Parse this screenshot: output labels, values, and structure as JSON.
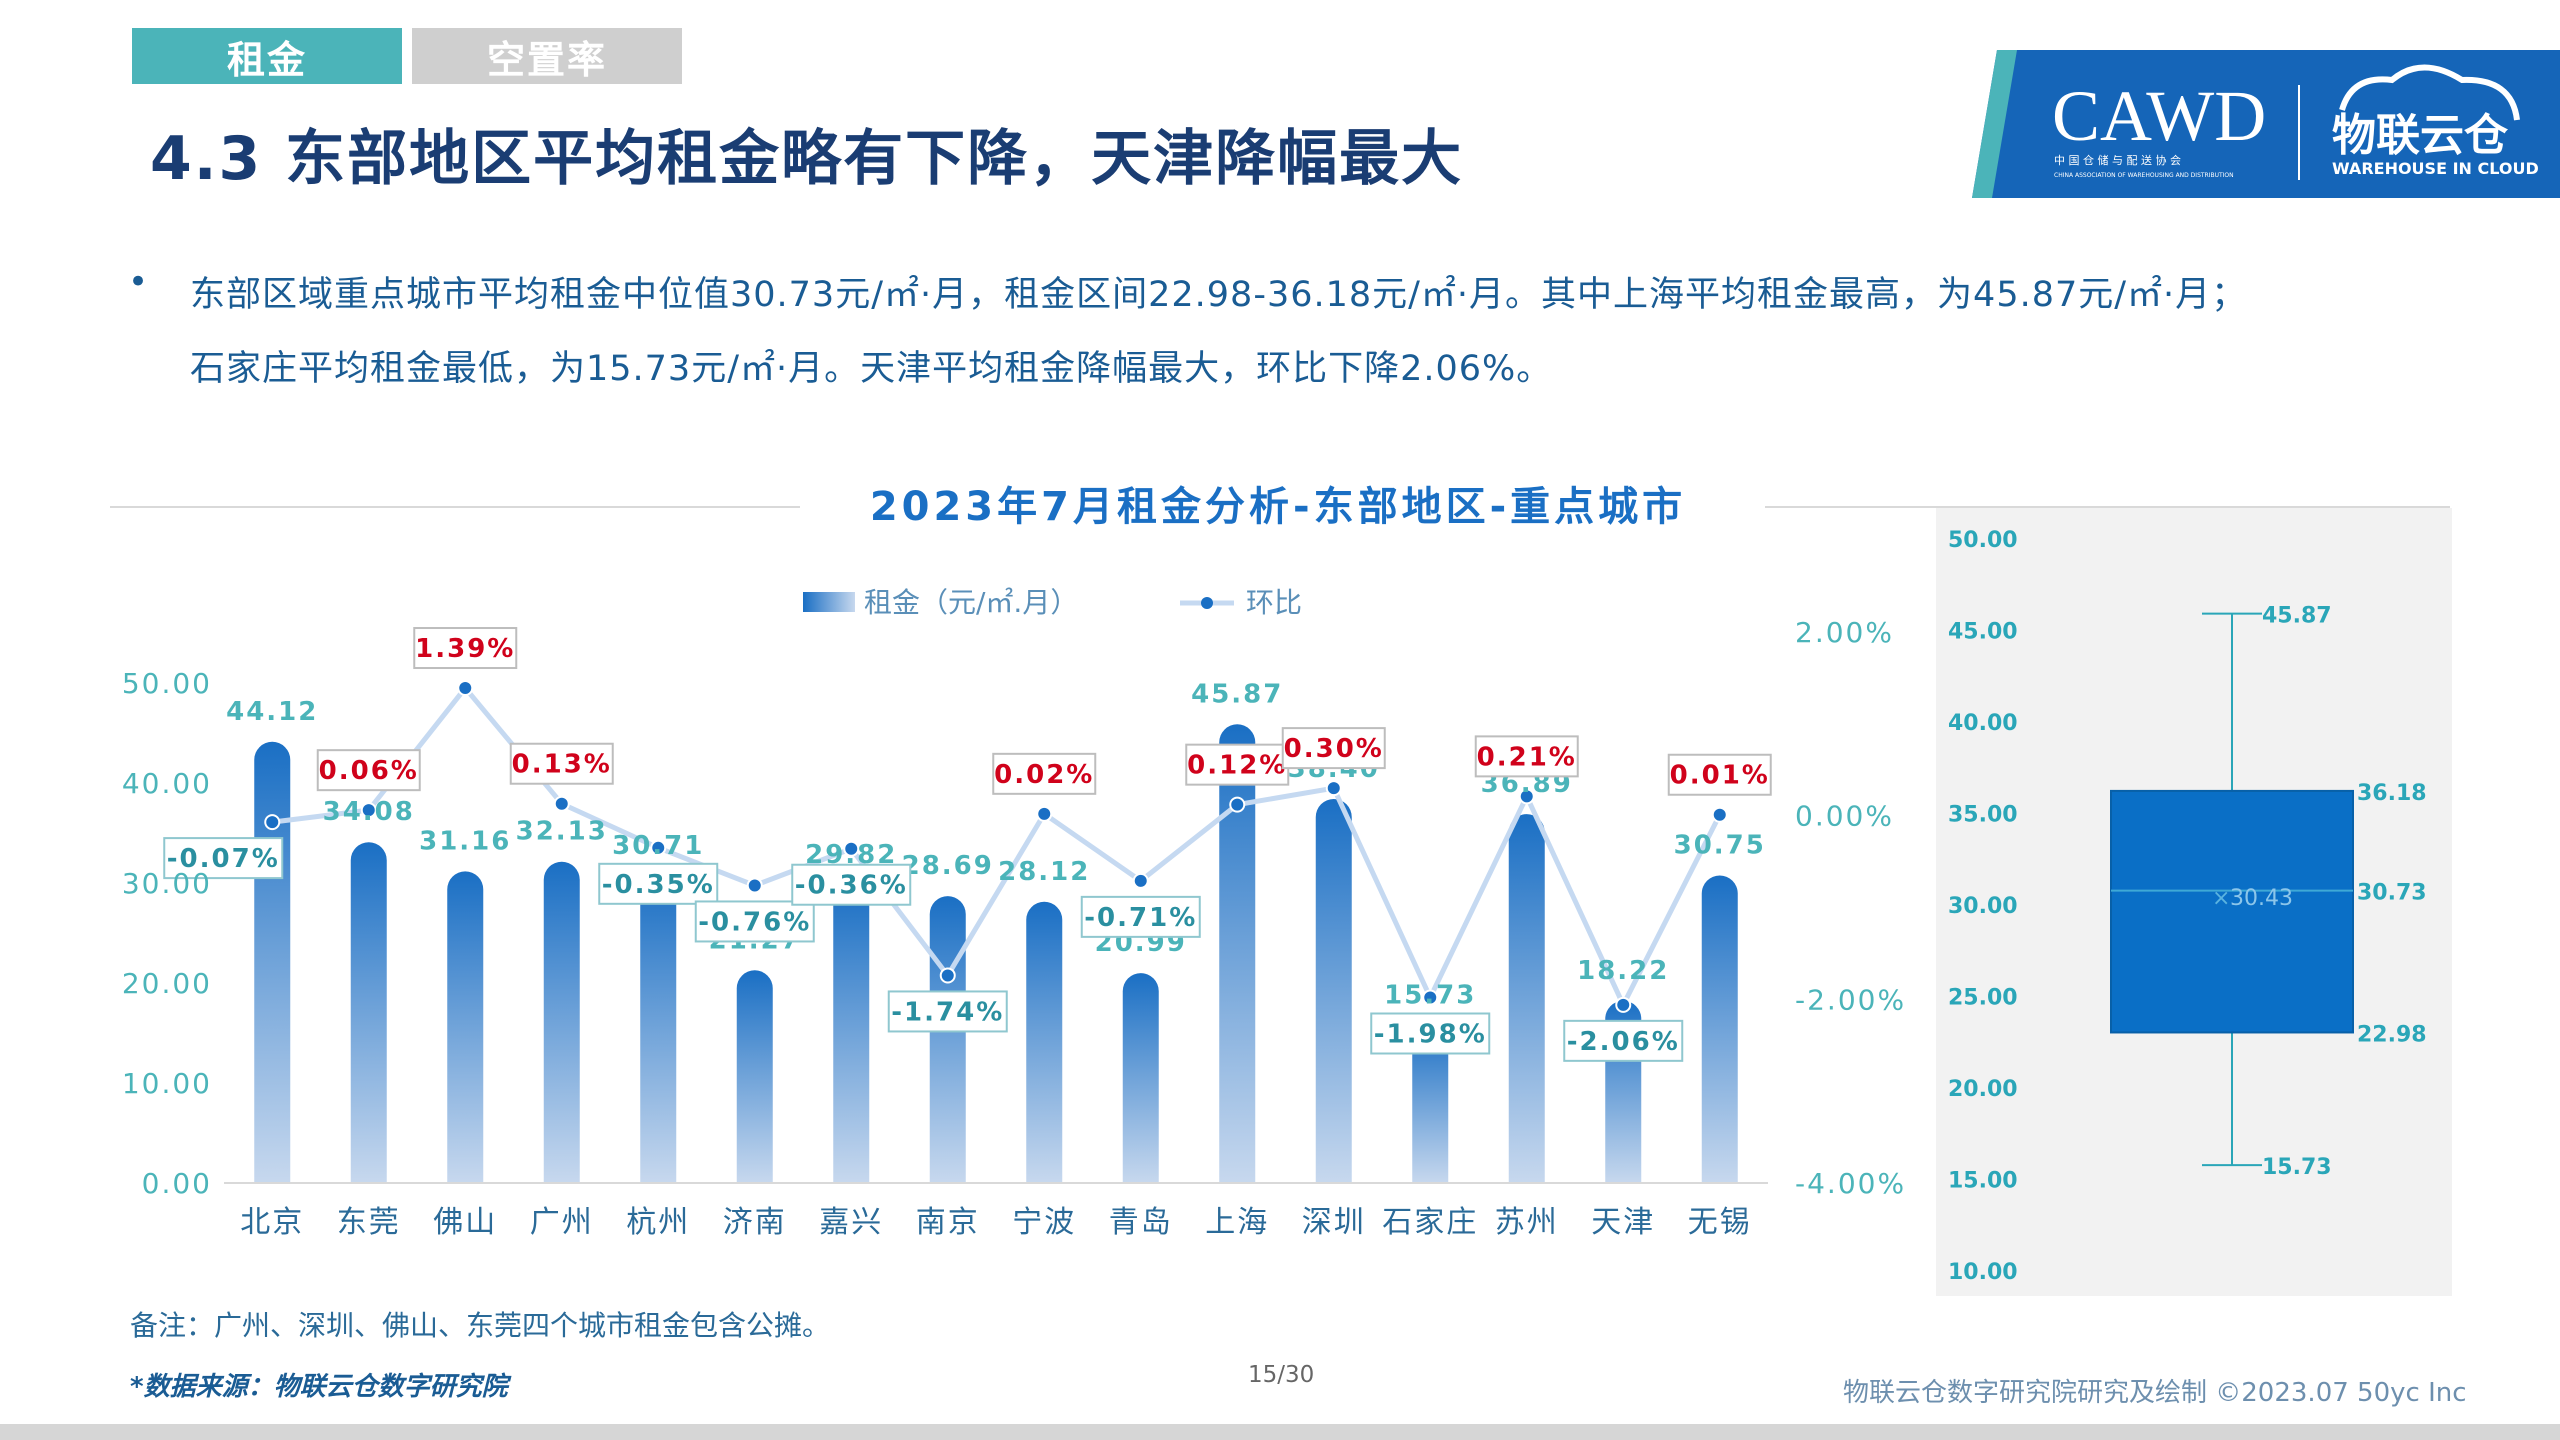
{
  "tabs": [
    {
      "label": "租金",
      "active": true
    },
    {
      "label": "空置率",
      "active": false
    }
  ],
  "page_title": "4.3 东部地区平均租金略有下降，天津降幅最大",
  "logo": {
    "brand": "CAWD",
    "sub_cn": "中 国 仓 储 与 配 送 协 会",
    "sub_en": "CHINA ASSOCIATION OF WAREHOUSING AND DISTRIBUTION",
    "partner_cn": "物联云仓",
    "partner_en": "WAREHOUSE IN CLOUD"
  },
  "bullet_symbol": "•",
  "bullet_lines": [
    "东部区域重点城市平均租金中位值30.73元/㎡·月，租金区间22.98-36.18元/㎡·月。其中上海平均租金最高，为45.87元/㎡·月；",
    "石家庄平均租金最低，为15.73元/㎡·月。天津平均租金降幅最大，环比下降2.06%。"
  ],
  "chart_data": [
    {
      "type": "bar",
      "title": "2023年7月租金分析-东部地区-重点城市",
      "categories": [
        "北京",
        "东莞",
        "佛山",
        "广州",
        "杭州",
        "济南",
        "嘉兴",
        "南京",
        "宁波",
        "青岛",
        "上海",
        "深圳",
        "石家庄",
        "苏州",
        "天津",
        "无锡"
      ],
      "series": [
        {
          "name": "租金（元/㎡.月）",
          "kind": "bar",
          "axis": "left",
          "values": [
            44.12,
            34.08,
            31.16,
            32.13,
            30.71,
            21.27,
            29.82,
            28.69,
            28.12,
            20.99,
            45.87,
            38.4,
            15.73,
            36.89,
            18.22,
            30.75
          ]
        },
        {
          "name": "环比",
          "kind": "line",
          "axis": "right",
          "unit": "%",
          "values": [
            -0.07,
            0.06,
            1.39,
            0.13,
            -0.35,
            -0.76,
            -0.36,
            -1.74,
            0.02,
            -0.71,
            0.12,
            0.3,
            -1.98,
            0.21,
            -2.06,
            0.01
          ]
        }
      ],
      "bar_labels": [
        "44.12",
        "34.08",
        "31.16",
        "32.13",
        "30.71",
        "21.27",
        "29.82",
        "28.69",
        "28.12",
        "20.99",
        "45.87",
        "38.40",
        "15.73",
        "36.89",
        "18.22",
        "30.75"
      ],
      "line_labels": [
        "-0.07%",
        "0.06%",
        "1.39%",
        "0.13%",
        "-0.35%",
        "-0.76%",
        "-0.36%",
        "-1.74%",
        "0.02%",
        "-0.71%",
        "0.12%",
        "0.30%",
        "-1.98%",
        "0.21%",
        "-2.06%",
        "0.01%"
      ],
      "y_left": {
        "range": [
          0,
          50
        ],
        "ticks": [
          "0.00",
          "10.00",
          "20.00",
          "30.00",
          "40.00",
          "50.00"
        ]
      },
      "y_right": {
        "range": [
          -4,
          2
        ],
        "ticks": [
          "-4.00%",
          "-2.00%",
          "0.00%",
          "2.00%"
        ]
      },
      "legend_position": "top-center",
      "grid": false,
      "colors": {
        "bar_top": "#1a6fc4",
        "bar_bottom": "#c7d8ee",
        "line": "#c5d9f1",
        "marker": "#1a6fc4",
        "positive_label": "#d0021b",
        "negative_label": "#2a8fa0",
        "axis_text": "#4bb4b9"
      }
    },
    {
      "type": "box",
      "y_range": [
        10,
        50
      ],
      "ticks": [
        "10.00",
        "15.00",
        "20.00",
        "25.00",
        "30.00",
        "35.00",
        "40.00",
        "45.00",
        "50.00"
      ],
      "stats": {
        "min": 15.73,
        "q1": 22.98,
        "median": 30.73,
        "mean": 30.43,
        "q3": 36.18,
        "max": 45.87
      },
      "labels": {
        "min": "15.73",
        "q1": "22.98",
        "median": "30.73",
        "mean": "30.43",
        "q3": "36.18",
        "max": "45.87"
      },
      "mean_marker": "×",
      "colors": {
        "box": "#0a6fc6",
        "whisker": "#2aa6b8",
        "panel": "#f2f2f2",
        "tick_text": "#2aa6b8"
      }
    }
  ],
  "note": "备注：广州、深圳、佛山、东莞四个城市租金包含公摊。",
  "source": "*数据来源：物联云仓数字研究院",
  "page_number": "15/30",
  "credit": "物联云仓数字研究院研究及绘制    ©2023.07 50yc Inc"
}
